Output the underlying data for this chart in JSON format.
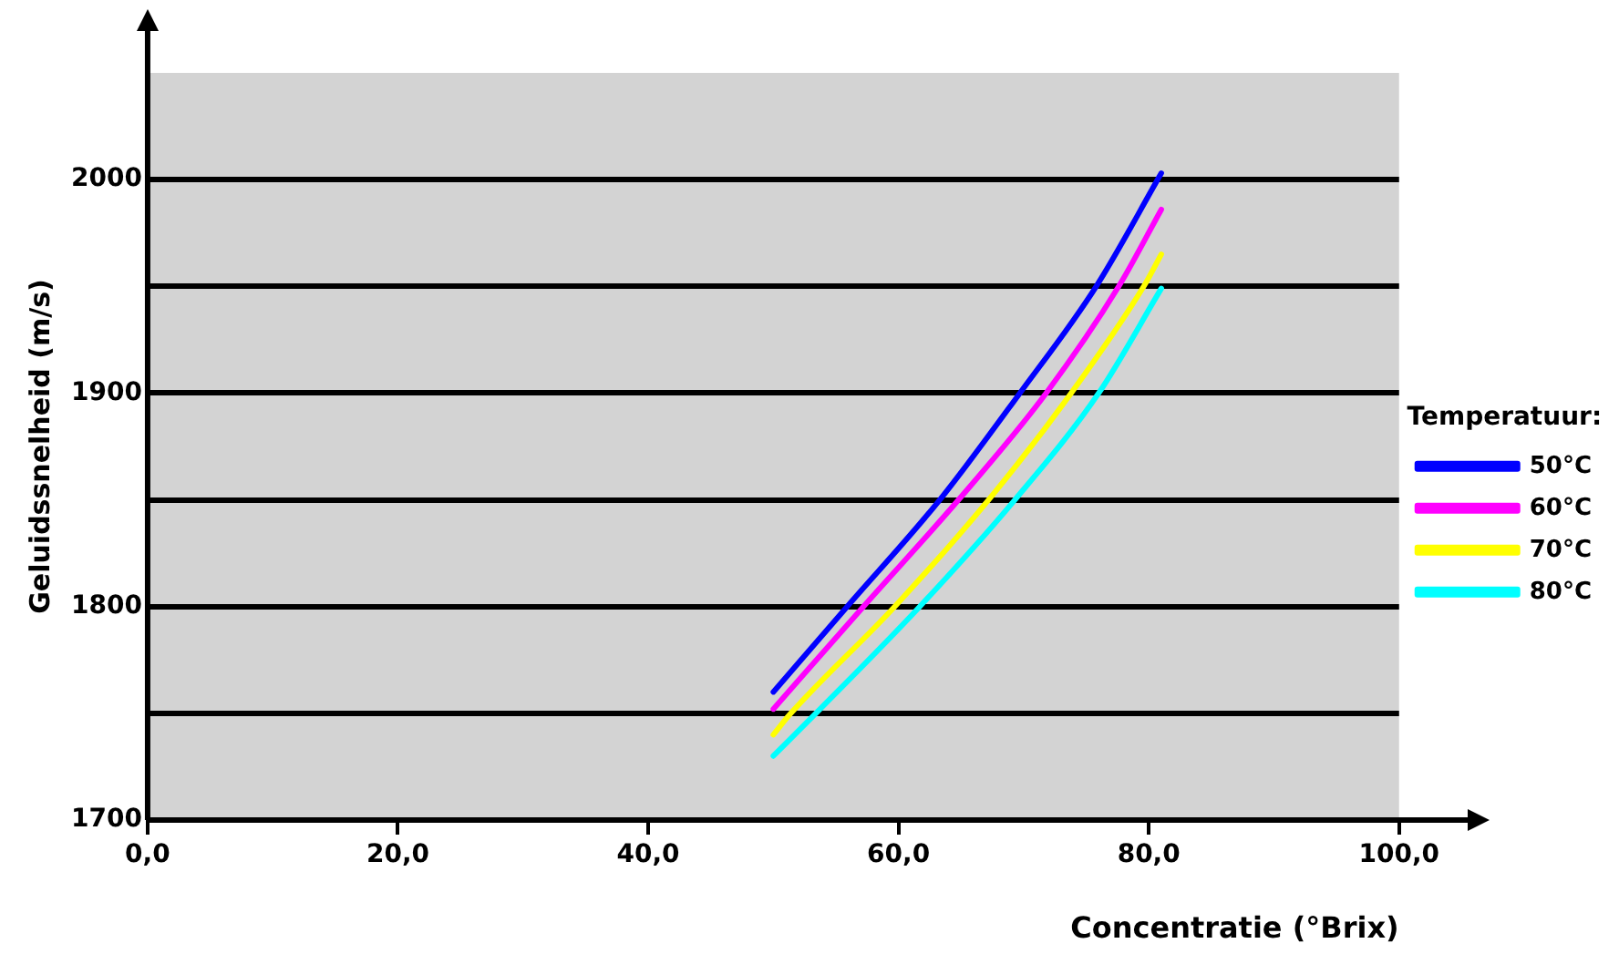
{
  "chart_data": {
    "type": "line",
    "xlabel": "Concentratie (°Brix)",
    "ylabel": "Geluidssnelheid (m/s)",
    "legend_title": "Temperatuur:",
    "xlim": [
      0,
      100
    ],
    "xticks": [
      {
        "value": 0,
        "label": "0,0"
      },
      {
        "value": 20,
        "label": "20,0"
      },
      {
        "value": 40,
        "label": "40,0"
      },
      {
        "value": 60,
        "label": "60,0"
      },
      {
        "value": 80,
        "label": "80,0"
      },
      {
        "value": 100,
        "label": "100,0"
      }
    ],
    "ylim": [
      1700,
      2050
    ],
    "yticks": [
      1700,
      {
        "value": 1750,
        "label": null
      },
      1800,
      {
        "value": 1850,
        "label": null
      },
      1900,
      {
        "value": 1950,
        "label": null
      },
      2000
    ],
    "grid": "y",
    "legend": "right",
    "marker": "none",
    "line_style": "solid",
    "series": [
      {
        "name": "50°C",
        "color": "#0000ff",
        "x": [
          50,
          55.9,
          63.3,
          69.7,
          75.8,
          81
        ],
        "values": [
          1760,
          1800,
          1850,
          1900,
          1950,
          2003
        ]
      },
      {
        "name": "60°C",
        "color": "#ff00ff",
        "x": [
          50,
          57.2,
          64.8,
          71.8,
          77.6,
          81
        ],
        "values": [
          1752,
          1800,
          1850,
          1900,
          1950,
          1986
        ]
      },
      {
        "name": "70°C",
        "color": "#ffff00",
        "x": [
          50,
          51.4,
          59.7,
          67.2,
          73.8,
          79.6,
          81
        ],
        "values": [
          1740,
          1750,
          1800,
          1850,
          1900,
          1950,
          1965
        ]
      },
      {
        "name": "80°C",
        "color": "#00ffff",
        "x": [
          50,
          53.4,
          61.7,
          69.3,
          76,
          81
        ],
        "values": [
          1730,
          1750,
          1800,
          1850,
          1900,
          1949
        ]
      }
    ]
  }
}
